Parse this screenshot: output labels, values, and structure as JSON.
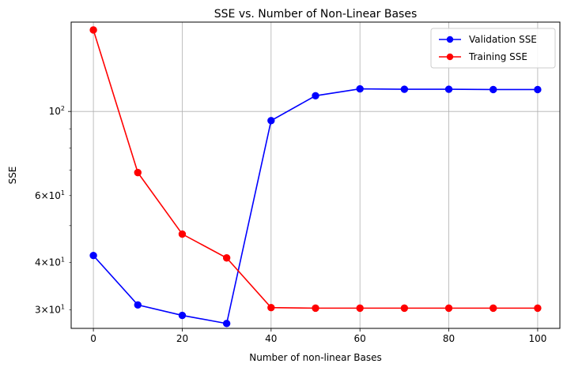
{
  "chart_data": {
    "type": "line",
    "title": "SSE vs. Number of Non-Linear Bases",
    "xlabel": "Number of non-linear Bases",
    "ylabel": "SSE",
    "xlim": [
      -5,
      105
    ],
    "ylim": [
      26.8,
      172
    ],
    "yscale": "log",
    "grid": true,
    "legend_loc": "upper right",
    "x": [
      0,
      10,
      20,
      30,
      40,
      50,
      60,
      70,
      80,
      90,
      100
    ],
    "xticks": [
      0,
      20,
      40,
      60,
      80,
      100
    ],
    "xtick_labels": [
      "0",
      "20",
      "40",
      "60",
      "80",
      "100"
    ],
    "yticks_major": [
      100
    ],
    "yticks_major_labels": [
      "10^2"
    ],
    "yticks_minor": [
      30,
      40,
      60
    ],
    "yticks_minor_labels": [
      "3×10^1",
      "4×10^1",
      "6×10^1"
    ],
    "yticks_minor_unlabeled": [
      50,
      70,
      80,
      90
    ],
    "series": [
      {
        "name": "Validation SSE",
        "color": "#0000ff",
        "marker": "circle",
        "values": [
          41.7,
          30.9,
          29.0,
          27.6,
          94.6,
          110.0,
          114.7,
          114.4,
          114.4,
          114.2,
          114.2
        ]
      },
      {
        "name": "Training SSE",
        "color": "#ff0000",
        "marker": "circle",
        "values": [
          164.0,
          69.0,
          47.5,
          41.1,
          30.4,
          30.3,
          30.3,
          30.3,
          30.3,
          30.3,
          30.3
        ]
      }
    ]
  }
}
